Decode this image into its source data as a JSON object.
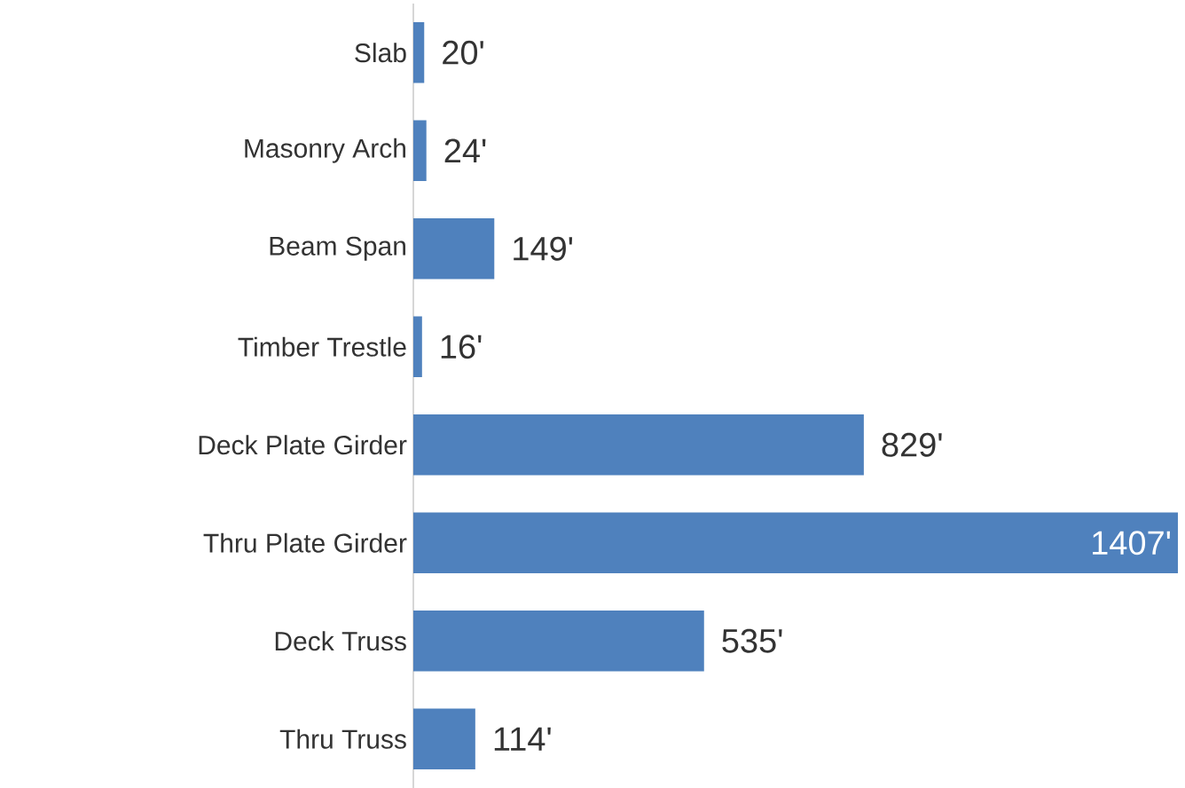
{
  "chart_data": {
    "type": "bar",
    "orientation": "horizontal",
    "categories": [
      "Slab",
      "Masonry Arch",
      "Beam Span",
      "Timber Trestle",
      "Deck Plate Girder",
      "Thru Plate Girder",
      "Deck Truss",
      "Thru Truss"
    ],
    "values": [
      20,
      24,
      149,
      16,
      829,
      1407,
      535,
      114
    ],
    "value_labels": [
      "20'",
      "24'",
      "149'",
      "16'",
      "829'",
      "1407'",
      "535'",
      "114'"
    ],
    "color": "#4f81bd"
  }
}
